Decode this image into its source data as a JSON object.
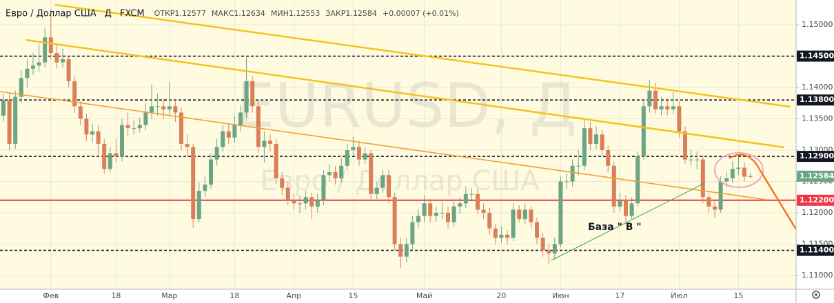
{
  "chart_data": {
    "type": "candlestick",
    "title": "Евро / Доллар США",
    "interval": "Д",
    "source": "FXCM",
    "ohlc_header": [
      "ОТКР1.12577",
      "МАКС1.12634",
      "МИН1.12553",
      "ЗАКР1.12584",
      "+0.00007 (+0.01%)"
    ],
    "watermark": "EURUSD, Д",
    "watermark_sub": "Евро / Доллар США",
    "annotation": "База \" В \"",
    "up_color": "#6ba583",
    "down_color": "#d9805a",
    "categories": [
      null,
      null,
      null,
      null,
      null,
      null,
      null,
      null,
      "Фев",
      null,
      null,
      null,
      null,
      null,
      null,
      null,
      null,
      null,
      null,
      "18",
      null,
      null,
      null,
      null,
      null,
      null,
      null,
      null,
      "Мар",
      null,
      null,
      null,
      null,
      null,
      null,
      null,
      null,
      null,
      null,
      "18",
      null,
      null,
      null,
      null,
      null,
      null,
      null,
      null,
      null,
      "Апр",
      null,
      null,
      null,
      null,
      null,
      null,
      null,
      null,
      null,
      "15",
      null,
      null,
      null,
      null,
      null,
      null,
      null,
      null,
      null,
      null,
      null,
      "Май",
      null,
      null,
      null,
      null,
      null,
      null,
      null,
      null,
      null,
      null,
      null,
      null,
      "20",
      null,
      null,
      null,
      null,
      null,
      null,
      null,
      null,
      null,
      "Июн",
      null,
      null,
      null,
      null,
      null,
      null,
      null,
      null,
      null,
      "17",
      null,
      null,
      null,
      null,
      null,
      null,
      null,
      null,
      null,
      "Июл",
      null,
      null,
      null,
      null,
      null,
      null,
      null,
      null,
      null,
      "15",
      null,
      null
    ],
    "open": [
      1.1355,
      1.138,
      1.131,
      1.1385,
      1.1415,
      1.143,
      1.1435,
      1.144,
      1.148,
      1.1455,
      1.144,
      1.1445,
      1.141,
      1.137,
      1.135,
      1.1325,
      1.133,
      1.131,
      1.127,
      1.1295,
      1.129,
      1.134,
      1.1335,
      1.1335,
      1.134,
      1.136,
      1.137,
      1.137,
      1.1365,
      1.137,
      1.136,
      1.131,
      1.1305,
      1.119,
      1.1235,
      1.1245,
      1.1285,
      1.1305,
      1.133,
      1.132,
      1.134,
      1.136,
      1.141,
      1.137,
      1.1305,
      1.1315,
      1.131,
      1.1255,
      1.124,
      1.122,
      1.1215,
      1.1215,
      1.1225,
      1.121,
      1.122,
      1.126,
      1.1265,
      1.1255,
      1.1275,
      1.13,
      1.1305,
      1.1285,
      1.1295,
      1.123,
      1.124,
      1.126,
      1.1225,
      1.115,
      1.113,
      1.115,
      1.1185,
      1.1195,
      1.1215,
      1.1195,
      1.12,
      1.12,
      1.1185,
      1.121,
      1.1215,
      1.123,
      1.123,
      1.1205,
      1.12,
      1.1175,
      1.116,
      1.1165,
      1.116,
      1.1205,
      1.119,
      1.1205,
      1.1185,
      1.116,
      1.114,
      1.1135,
      1.115,
      1.125,
      1.125,
      1.1275,
      1.1275,
      1.1335,
      1.131,
      1.1325,
      1.13,
      1.1275,
      1.121,
      1.122,
      1.1195,
      1.1215,
      1.129,
      1.137,
      1.1395,
      1.1365,
      1.137,
      1.1365,
      1.137,
      1.133,
      1.1285,
      1.1285,
      1.1285,
      1.1225,
      1.121,
      1.1205,
      1.125,
      1.1255,
      1.127,
      1.1272,
      1.12577
    ],
    "high": [
      1.139,
      1.1392,
      1.1395,
      1.1428,
      1.1445,
      1.1455,
      1.147,
      1.1495,
      1.1525,
      1.147,
      1.1462,
      1.145,
      1.1418,
      1.1378,
      1.1358,
      1.1342,
      1.134,
      1.1318,
      1.1305,
      1.1318,
      1.135,
      1.136,
      1.1348,
      1.1352,
      1.1375,
      1.1405,
      1.139,
      1.1382,
      1.1408,
      1.138,
      1.1368,
      1.1325,
      1.131,
      1.1248,
      1.1258,
      1.1295,
      1.1318,
      1.134,
      1.1342,
      1.1355,
      1.1372,
      1.1448,
      1.1418,
      1.1378,
      1.133,
      1.1325,
      1.1318,
      1.1265,
      1.1248,
      1.123,
      1.1228,
      1.1235,
      1.1232,
      1.123,
      1.1268,
      1.1278,
      1.1275,
      1.1288,
      1.131,
      1.1322,
      1.1315,
      1.1305,
      1.13,
      1.125,
      1.1268,
      1.1268,
      1.1232,
      1.116,
      1.116,
      1.1195,
      1.1205,
      1.1228,
      1.1222,
      1.121,
      1.1218,
      1.121,
      1.122,
      1.1225,
      1.1242,
      1.124,
      1.1238,
      1.1215,
      1.1208,
      1.1182,
      1.1178,
      1.1172,
      1.1215,
      1.1212,
      1.1215,
      1.121,
      1.1192,
      1.1168,
      1.115,
      1.116,
      1.1258,
      1.1262,
      1.1285,
      1.13,
      1.1348,
      1.1345,
      1.1338,
      1.1332,
      1.1308,
      1.1282,
      1.1232,
      1.1228,
      1.1225,
      1.1298,
      1.1378,
      1.1412,
      1.1408,
      1.1385,
      1.138,
      1.1392,
      1.1378,
      1.1338,
      1.13,
      1.1298,
      1.1292,
      1.1232,
      1.122,
      1.1258,
      1.1265,
      1.1282,
      1.129,
      1.128,
      1.12634
    ],
    "low": [
      1.1345,
      1.13,
      1.1302,
      1.1375,
      1.14,
      1.142,
      1.1425,
      1.1432,
      1.1445,
      1.143,
      1.1432,
      1.14,
      1.136,
      1.134,
      1.1315,
      1.1312,
      1.129,
      1.1262,
      1.1265,
      1.128,
      1.1282,
      1.1322,
      1.1325,
      1.1328,
      1.1332,
      1.135,
      1.1355,
      1.135,
      1.1355,
      1.1345,
      1.13,
      1.129,
      1.1176,
      1.1185,
      1.1225,
      1.1238,
      1.1275,
      1.1298,
      1.131,
      1.1312,
      1.133,
      1.1352,
      1.136,
      1.1295,
      1.128,
      1.1298,
      1.1245,
      1.1228,
      1.1212,
      1.1205,
      1.12,
      1.1205,
      1.119,
      1.12,
      1.1212,
      1.125,
      1.1245,
      1.1248,
      1.1268,
      1.129,
      1.1275,
      1.1278,
      1.1222,
      1.1222,
      1.1232,
      1.1215,
      1.114,
      1.1112,
      1.112,
      1.1142,
      1.1175,
      1.1185,
      1.1185,
      1.1185,
      1.119,
      1.1175,
      1.1178,
      1.1198,
      1.1208,
      1.1218,
      1.1198,
      1.119,
      1.1165,
      1.115,
      1.1152,
      1.115,
      1.1155,
      1.1185,
      1.1182,
      1.1175,
      1.115,
      1.113,
      1.1118,
      1.1125,
      1.1145,
      1.1238,
      1.1242,
      1.126,
      1.1268,
      1.13,
      1.1302,
      1.129,
      1.1265,
      1.12,
      1.1202,
      1.1182,
      1.119,
      1.121,
      1.1285,
      1.136,
      1.1358,
      1.1355,
      1.1355,
      1.1358,
      1.132,
      1.1278,
      1.1275,
      1.127,
      1.1215,
      1.12,
      1.1192,
      1.12,
      1.124,
      1.1248,
      1.126,
      1.125,
      1.12553
    ],
    "close": [
      1.138,
      1.131,
      1.1385,
      1.1415,
      1.143,
      1.1435,
      1.144,
      1.148,
      1.1455,
      1.144,
      1.1445,
      1.141,
      1.137,
      1.135,
      1.1325,
      1.133,
      1.131,
      1.127,
      1.1295,
      1.129,
      1.134,
      1.1335,
      1.1335,
      1.134,
      1.136,
      1.137,
      1.137,
      1.1365,
      1.137,
      1.136,
      1.131,
      1.1305,
      1.119,
      1.1235,
      1.1245,
      1.1285,
      1.1305,
      1.133,
      1.132,
      1.134,
      1.136,
      1.141,
      1.137,
      1.1305,
      1.1315,
      1.131,
      1.1255,
      1.124,
      1.122,
      1.1215,
      1.1215,
      1.1225,
      1.121,
      1.122,
      1.126,
      1.1265,
      1.1255,
      1.1275,
      1.13,
      1.1305,
      1.1285,
      1.1295,
      1.123,
      1.124,
      1.126,
      1.1225,
      1.115,
      1.113,
      1.115,
      1.1185,
      1.1195,
      1.1215,
      1.1195,
      1.12,
      1.12,
      1.1185,
      1.121,
      1.1215,
      1.123,
      1.123,
      1.1205,
      1.12,
      1.1175,
      1.116,
      1.1165,
      1.116,
      1.1205,
      1.119,
      1.1205,
      1.1185,
      1.116,
      1.114,
      1.1135,
      1.115,
      1.125,
      1.125,
      1.1275,
      1.1275,
      1.1335,
      1.131,
      1.1325,
      1.13,
      1.1275,
      1.121,
      1.122,
      1.1195,
      1.1215,
      1.129,
      1.137,
      1.1395,
      1.1365,
      1.137,
      1.1365,
      1.137,
      1.133,
      1.1285,
      1.1285,
      1.1285,
      1.1225,
      1.121,
      1.1205,
      1.125,
      1.1255,
      1.127,
      1.1272,
      1.12577,
      1.12584
    ],
    "last_price_label": "1.12584",
    "last_price_color": "#6ba583",
    "ylim": [
      1.1078,
      1.15396
    ],
    "yticks": [
      {
        "value": 1.11,
        "label": "1.11000"
      },
      {
        "value": 1.115,
        "label": "1.11500"
      },
      {
        "value": 1.12,
        "label": "1.12000"
      },
      {
        "value": 1.125,
        "label": "1.12500"
      },
      {
        "value": 1.13,
        "label": "1.13000"
      },
      {
        "value": 1.135,
        "label": "1.13500"
      },
      {
        "value": 1.14,
        "label": "1.14000"
      },
      {
        "value": 1.145,
        "label": "1.14500"
      },
      {
        "value": 1.15,
        "label": "1.15000"
      }
    ],
    "grid": true,
    "levels": [
      {
        "value": 1.145,
        "label": "1.14500",
        "color": "#131722",
        "style": "dashed"
      },
      {
        "value": 1.138,
        "label": "1.13800",
        "color": "#131722",
        "style": "dashed"
      },
      {
        "value": 1.129,
        "label": "1.12900",
        "color": "#131722",
        "style": "dashed"
      },
      {
        "value": 1.122,
        "label": "1.12200",
        "color": "#f23645",
        "style": "solid"
      },
      {
        "value": 1.114,
        "label": "1.11400",
        "color": "#131722",
        "style": "dashed"
      }
    ]
  }
}
